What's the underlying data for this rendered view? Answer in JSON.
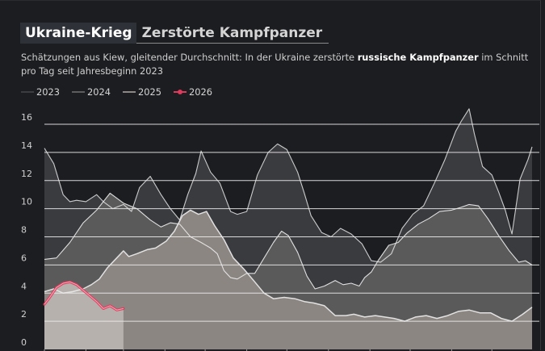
{
  "header": {
    "title": "Ukraine-Krieg",
    "title_sub": "Zerstörte Kampfpanzer",
    "subtitle_pre": "Schätzungen aus Kiew, gleitender Durchschnitt: In der Ukraine zerstörte ",
    "subtitle_bold": "russische Kampfpanzer",
    "subtitle_post": " im Schnitt pro Tag seit Jahresbeginn 2023"
  },
  "legend": [
    {
      "label": "2023",
      "color": "#3b3c40",
      "marker": false
    },
    {
      "label": "2024",
      "color": "#5e5d5d",
      "marker": false
    },
    {
      "label": "2025",
      "color": "#8e8884",
      "marker": false
    },
    {
      "label": "2026",
      "color": "#e0395b",
      "marker": true
    }
  ],
  "colors": {
    "fill_2023": "#3a3b3f",
    "fill_2024": "#5b5a5a",
    "fill_2025": "#8c8682",
    "fill_2026": "#b6b1ac",
    "line": "#e8e8e8",
    "line_2026": "#e0395b",
    "grid": "#ececec",
    "background": "#1c1d20"
  },
  "chart_data": {
    "type": "area",
    "x_unit": "Tag des Jahres",
    "xlim": [
      1,
      365
    ],
    "ylim": [
      0,
      16
    ],
    "yticks": [
      0,
      2,
      4,
      6,
      8,
      10,
      12,
      14,
      16
    ],
    "xticks": [
      1,
      32,
      60,
      91,
      121,
      152,
      182,
      213,
      244,
      274,
      305,
      335
    ],
    "grid": true,
    "legend_position": "top-left",
    "series": [
      {
        "name": "2023",
        "x": [
          1,
          8,
          15,
          20,
          25,
          32,
          40,
          45,
          52,
          60,
          66,
          72,
          80,
          88,
          95,
          102,
          108,
          114,
          118,
          125,
          132,
          140,
          145,
          152,
          160,
          168,
          175,
          182,
          190,
          195,
          200,
          208,
          215,
          222,
          230,
          238,
          245,
          252,
          260,
          268,
          276,
          284,
          292,
          300,
          308,
          312,
          318,
          322,
          328,
          335,
          340,
          345,
          350,
          356,
          362,
          365
        ],
        "y": [
          14.3,
          13.2,
          11.0,
          10.5,
          10.6,
          10.5,
          11.0,
          10.5,
          10.0,
          10.3,
          9.8,
          11.5,
          12.3,
          11.0,
          10.0,
          9.2,
          11.0,
          12.5,
          14.1,
          12.6,
          11.8,
          9.8,
          9.6,
          9.8,
          12.4,
          14.0,
          14.6,
          14.2,
          12.6,
          11.1,
          9.5,
          8.3,
          8.0,
          8.6,
          8.2,
          7.5,
          6.3,
          6.2,
          6.8,
          8.6,
          9.6,
          10.2,
          11.8,
          13.5,
          15.5,
          16.2,
          17.1,
          15.3,
          13.0,
          12.4,
          11.2,
          9.9,
          8.2,
          12.1,
          13.5,
          14.4
        ]
      },
      {
        "name": "2024",
        "x": [
          1,
          10,
          20,
          30,
          40,
          50,
          60,
          70,
          80,
          88,
          95,
          102,
          110,
          118,
          125,
          130,
          135,
          140,
          145,
          152,
          158,
          165,
          172,
          178,
          183,
          190,
          197,
          203,
          210,
          218,
          224,
          230,
          236,
          240,
          245,
          250,
          258,
          265,
          272,
          280,
          288,
          296,
          305,
          312,
          318,
          325,
          332,
          340,
          348,
          355,
          360,
          365
        ],
        "y": [
          6.4,
          6.5,
          7.6,
          9.0,
          9.9,
          11.1,
          10.4,
          10.0,
          9.2,
          8.7,
          9.0,
          8.9,
          8.0,
          7.6,
          7.2,
          6.8,
          5.6,
          5.1,
          5.0,
          5.4,
          5.4,
          6.5,
          7.6,
          8.4,
          8.1,
          6.9,
          5.2,
          4.3,
          4.5,
          4.9,
          4.6,
          4.7,
          4.5,
          5.1,
          5.5,
          6.3,
          7.4,
          7.6,
          8.3,
          8.9,
          9.3,
          9.8,
          9.9,
          10.1,
          10.3,
          10.2,
          9.3,
          8.1,
          7.0,
          6.2,
          6.3,
          6.0
        ]
      },
      {
        "name": "2025",
        "x": [
          1,
          8,
          15,
          22,
          30,
          36,
          42,
          48,
          55,
          60,
          64,
          70,
          78,
          84,
          92,
          98,
          104,
          110,
          116,
          122,
          128,
          135,
          142,
          150,
          158,
          165,
          172,
          180,
          188,
          195,
          202,
          210,
          218,
          226,
          232,
          240,
          248,
          255,
          262,
          270,
          278,
          286,
          294,
          302,
          310,
          318,
          326,
          334,
          342,
          350,
          358,
          365
        ],
        "y": [
          4.1,
          4.3,
          4.0,
          4.1,
          4.3,
          4.6,
          5.0,
          5.8,
          6.5,
          7.0,
          6.6,
          6.8,
          7.1,
          7.2,
          7.7,
          8.4,
          9.5,
          9.9,
          9.6,
          9.8,
          8.8,
          7.8,
          6.5,
          5.7,
          4.8,
          4.0,
          3.6,
          3.7,
          3.6,
          3.4,
          3.3,
          3.1,
          2.4,
          2.4,
          2.5,
          2.3,
          2.4,
          2.3,
          2.2,
          2.0,
          2.3,
          2.4,
          2.2,
          2.4,
          2.7,
          2.8,
          2.6,
          2.6,
          2.2,
          2.0,
          2.5,
          3.0
        ]
      },
      {
        "name": "2026",
        "x": [
          1,
          5,
          10,
          15,
          20,
          25,
          30,
          35,
          40,
          45,
          50,
          55,
          60
        ],
        "y": [
          3.2,
          3.7,
          4.4,
          4.7,
          4.8,
          4.6,
          4.2,
          3.8,
          3.4,
          2.9,
          3.1,
          2.8,
          2.9
        ]
      }
    ]
  }
}
